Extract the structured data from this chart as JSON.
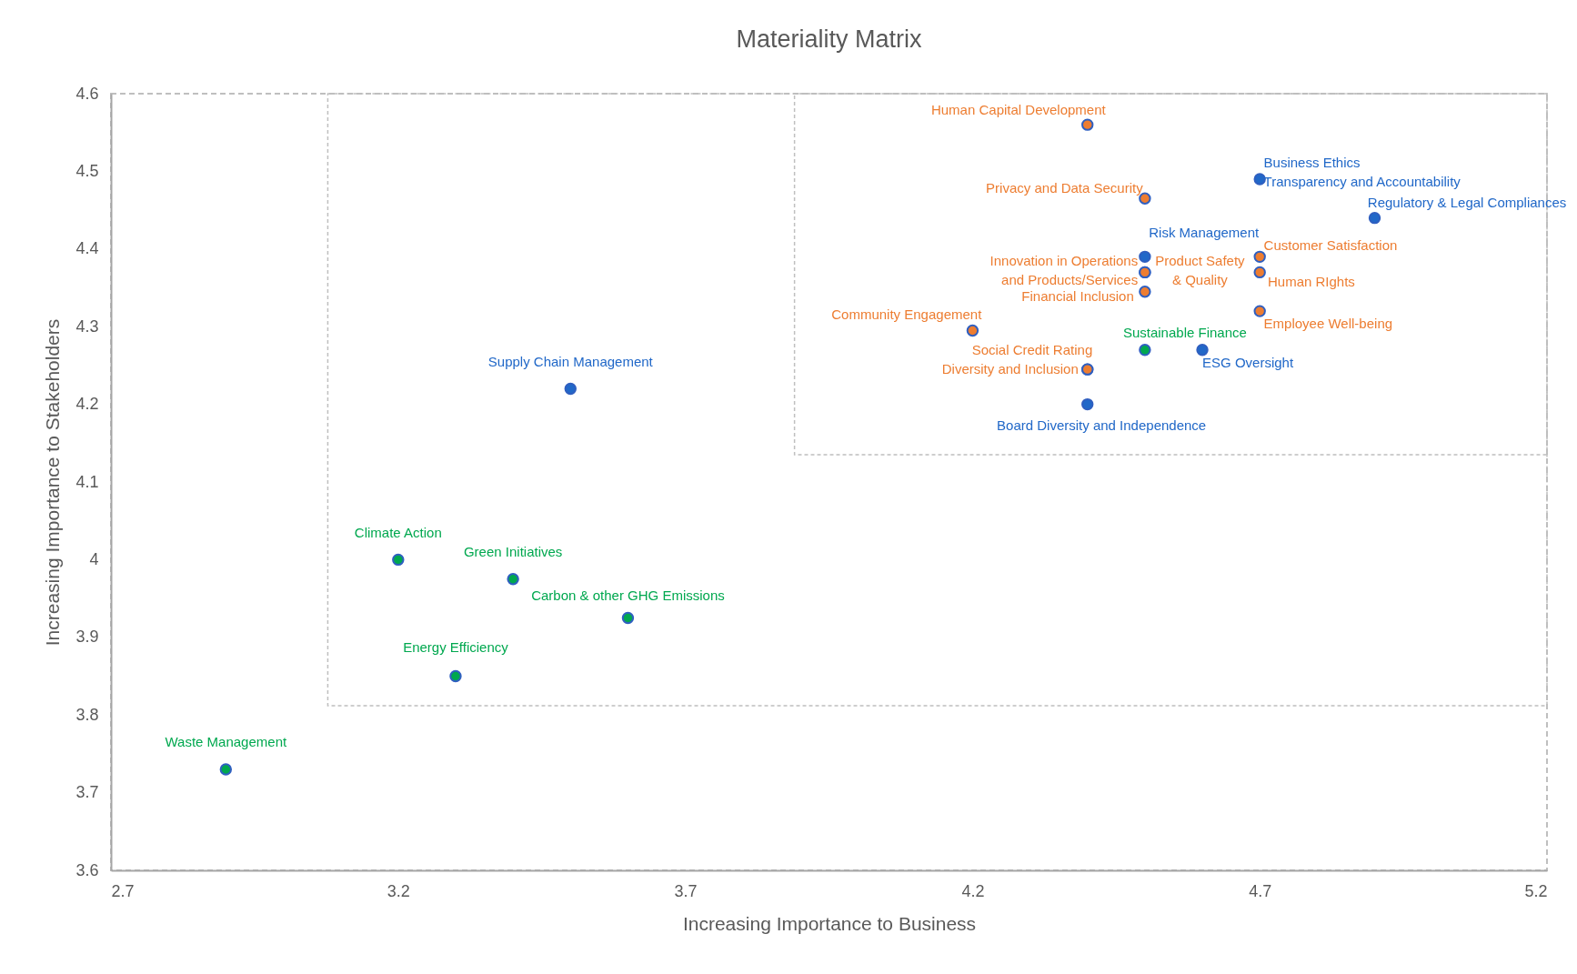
{
  "chart_data": {
    "type": "scatter",
    "title": "Materiality Matrix",
    "xlabel": "Increasing Importance to Business",
    "ylabel": "Increasing Importance to Stakeholders",
    "xlim": [
      2.7,
      5.2
    ],
    "xticks": [
      2.7,
      3.2,
      3.7,
      4.2,
      4.7,
      5.2
    ],
    "ylim": [
      3.6,
      4.6
    ],
    "yticks": [
      3.6,
      3.7,
      3.8,
      3.9,
      4,
      4.1,
      4.2,
      4.3,
      4.4,
      4.5,
      4.6
    ],
    "marker": "circle",
    "series": [
      {
        "name": "Human Capital Development",
        "color": "#ed7d31",
        "x": [
          4.4
        ],
        "values": [
          4.56
        ]
      },
      {
        "name": "Business Ethics Transparency and Accountability",
        "color": "#2168c8",
        "x": [
          4.7
        ],
        "values": [
          4.49
        ]
      },
      {
        "name": "Privacy and Data Security",
        "color": "#ed7d31",
        "x": [
          4.5
        ],
        "values": [
          4.465
        ]
      },
      {
        "name": "Regulatory & Legal Compliances",
        "color": "#2168c8",
        "x": [
          4.9
        ],
        "values": [
          4.44
        ]
      },
      {
        "name": "Risk Management",
        "color": "#2168c8",
        "x": [
          4.5
        ],
        "values": [
          4.39
        ]
      },
      {
        "name": "Customer Satisfaction",
        "color": "#ed7d31",
        "x": [
          4.7
        ],
        "values": [
          4.39
        ]
      },
      {
        "name": "Innovation in Operations and Products/Services",
        "color": "#ed7d31",
        "x": [
          4.5
        ],
        "values": [
          4.37
        ]
      },
      {
        "name": "Product Safety & Quality",
        "color": "#ed7d31",
        "x": [
          4.5
        ],
        "values": [
          4.37
        ]
      },
      {
        "name": "Human RIghts",
        "color": "#ed7d31",
        "x": [
          4.7
        ],
        "values": [
          4.37
        ]
      },
      {
        "name": "Financial Inclusion",
        "color": "#ed7d31",
        "x": [
          4.5
        ],
        "values": [
          4.345
        ]
      },
      {
        "name": "Employee Well-being",
        "color": "#ed7d31",
        "x": [
          4.7
        ],
        "values": [
          4.32
        ]
      },
      {
        "name": "Community Engagement",
        "color": "#ed7d31",
        "x": [
          4.2
        ],
        "values": [
          4.295
        ]
      },
      {
        "name": "Sustainable Finance",
        "color": "#00a84f",
        "x": [
          4.5
        ],
        "values": [
          4.27
        ]
      },
      {
        "name": "ESG Oversight",
        "color": "#2168c8",
        "x": [
          4.6
        ],
        "values": [
          4.27
        ]
      },
      {
        "name": "Social Credit Rating",
        "color": "#ed7d31",
        "x": [
          4.4
        ],
        "values": [
          4.245
        ]
      },
      {
        "name": "Diversity and Inclusion",
        "color": "#ed7d31",
        "x": [
          4.4
        ],
        "values": [
          4.245
        ]
      },
      {
        "name": "Board Diversity and Independence",
        "color": "#2168c8",
        "x": [
          4.4
        ],
        "values": [
          4.2
        ]
      },
      {
        "name": "Supply Chain Management",
        "color": "#2168c8",
        "x": [
          3.5
        ],
        "values": [
          4.22
        ]
      },
      {
        "name": "Climate Action",
        "color": "#00a84f",
        "x": [
          3.2
        ],
        "values": [
          4
        ]
      },
      {
        "name": "Green Initiatives",
        "color": "#00a84f",
        "x": [
          3.4
        ],
        "values": [
          3.975
        ]
      },
      {
        "name": "Carbon & other GHG Emissions",
        "color": "#00a84f",
        "x": [
          3.6
        ],
        "values": [
          3.925
        ]
      },
      {
        "name": "Energy Efficiency",
        "color": "#00a84f",
        "x": [
          3.3
        ],
        "values": [
          3.85
        ]
      },
      {
        "name": "Waste Management",
        "color": "#00a84f",
        "x": [
          2.9
        ],
        "values": [
          3.73
        ]
      }
    ]
  }
}
